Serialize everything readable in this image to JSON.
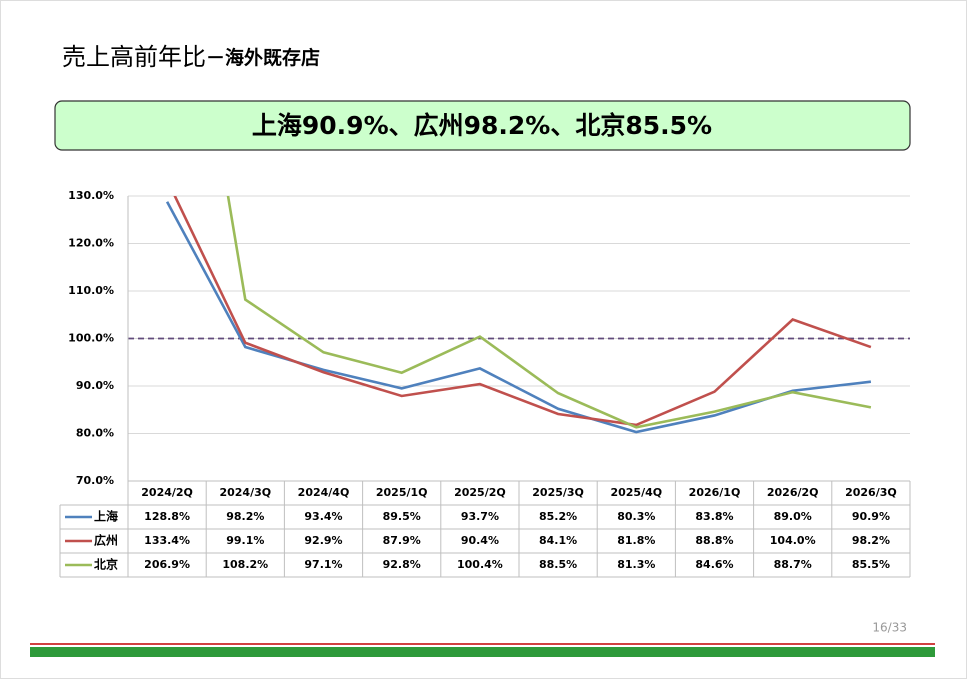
{
  "title": "売上高前年比",
  "subtitle": "－海外既存店",
  "banner": "上海90.9%、広州98.2%、北京85.5%",
  "page_number": "16/33",
  "chart_data": {
    "type": "line",
    "categories": [
      "2024/2Q",
      "2024/3Q",
      "2024/4Q",
      "2025/1Q",
      "2025/2Q",
      "2025/3Q",
      "2025/4Q",
      "2026/1Q",
      "2026/2Q",
      "2026/3Q"
    ],
    "series": [
      {
        "name": "上海",
        "color": "#4f81bd",
        "values": [
          128.8,
          98.2,
          93.4,
          89.5,
          93.7,
          85.2,
          80.3,
          83.8,
          89.0,
          90.9
        ],
        "value_labels": [
          "128.8%",
          "98.2%",
          "93.4%",
          "89.5%",
          "93.7%",
          "85.2%",
          "80.3%",
          "83.8%",
          "89.0%",
          "90.9%"
        ]
      },
      {
        "name": "広州",
        "color": "#c0504d",
        "values": [
          133.4,
          99.1,
          92.9,
          87.9,
          90.4,
          84.1,
          81.8,
          88.8,
          104.0,
          98.2
        ],
        "value_labels": [
          "133.4%",
          "99.1%",
          "92.9%",
          "87.9%",
          "90.4%",
          "84.1%",
          "81.8%",
          "88.8%",
          "104.0%",
          "98.2%"
        ]
      },
      {
        "name": "北京",
        "color": "#9bbb59",
        "values": [
          206.9,
          108.2,
          97.1,
          92.8,
          100.4,
          88.5,
          81.3,
          84.6,
          88.7,
          85.5
        ],
        "value_labels": [
          "206.9%",
          "108.2%",
          "97.1%",
          "92.8%",
          "100.4%",
          "88.5%",
          "81.3%",
          "84.6%",
          "88.7%",
          "85.5%"
        ]
      }
    ],
    "ylim": [
      70,
      130
    ],
    "yticks": [
      {
        "value": 70,
        "label": "70.0%"
      },
      {
        "value": 80,
        "label": "80.0%"
      },
      {
        "value": 90,
        "label": "90.0%"
      },
      {
        "value": 100,
        "label": "100.0%"
      },
      {
        "value": 110,
        "label": "110.0%"
      },
      {
        "value": 120,
        "label": "120.0%"
      },
      {
        "value": 130,
        "label": "130.0%"
      }
    ],
    "reference_line": 100,
    "reference_color": "#604a7b",
    "grid": true
  }
}
